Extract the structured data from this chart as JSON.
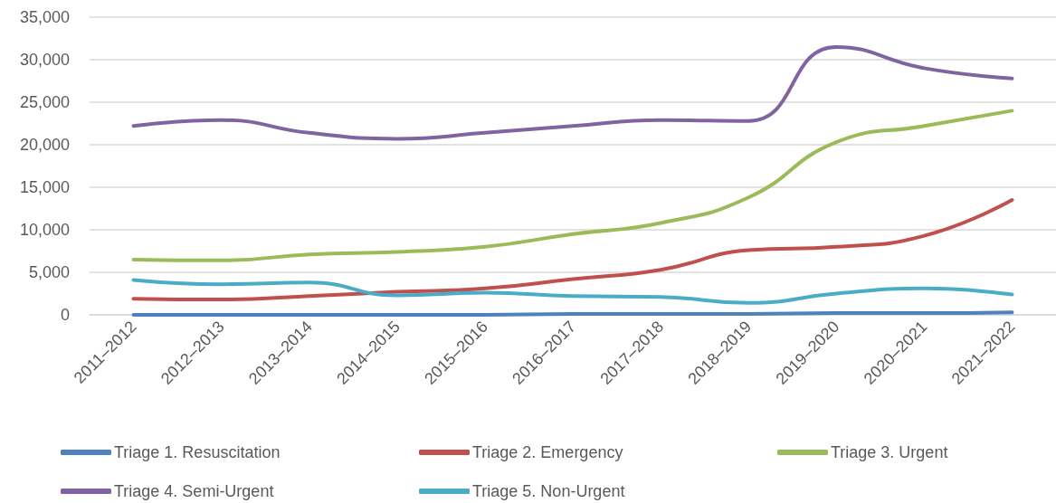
{
  "chart_data": {
    "type": "line",
    "categories": [
      "2011–2012",
      "2012–2013",
      "2013–2014",
      "2014–2015",
      "2015–2016",
      "2016–2017",
      "2017–2018",
      "2018–2019",
      "2019–2020",
      "2020–2021",
      "2021–2022"
    ],
    "series": [
      {
        "name": "Triage 1. Resuscitation",
        "color": "#4f81bd",
        "values": [
          0,
          0,
          0,
          0,
          0,
          100,
          100,
          100,
          200,
          200,
          300
        ]
      },
      {
        "name": "Triage 2. Emergency",
        "color": "#c0504d",
        "values": [
          1900,
          1800,
          2200,
          2700,
          3100,
          4200,
          5300,
          7600,
          8000,
          9300,
          13500
        ]
      },
      {
        "name": "Triage 3. Urgent",
        "color": "#9bbb59",
        "values": [
          6500,
          6400,
          7100,
          7400,
          8000,
          9500,
          10800,
          13800,
          20300,
          22200,
          24000
        ]
      },
      {
        "name": "Triage 4. Semi-Urgent",
        "color": "#8064a2",
        "values": [
          22200,
          22900,
          21400,
          20700,
          21400,
          22200,
          22900,
          22800,
          31500,
          29000,
          27800
        ]
      },
      {
        "name": "Triage 5. Non-Urgent",
        "color": "#4bacc6",
        "values": [
          4100,
          3600,
          3800,
          2300,
          2600,
          2200,
          2100,
          1400,
          2500,
          3100,
          2400
        ]
      }
    ],
    "ylim": [
      0,
      35000
    ],
    "yticks": [
      0,
      {
        "value": 5000,
        "label": "5,000"
      },
      {
        "value": 10000,
        "label": "10,000"
      },
      {
        "value": 15000,
        "label": "15,000"
      },
      {
        "value": 20000,
        "label": "20,000"
      },
      {
        "value": 25000,
        "label": "25,000"
      },
      {
        "value": 30000,
        "label": "30,000"
      },
      {
        "value": 35000,
        "label": "35,000"
      }
    ],
    "grid": "y",
    "legend": "bottom",
    "marker": "none",
    "line_style": "solid"
  }
}
